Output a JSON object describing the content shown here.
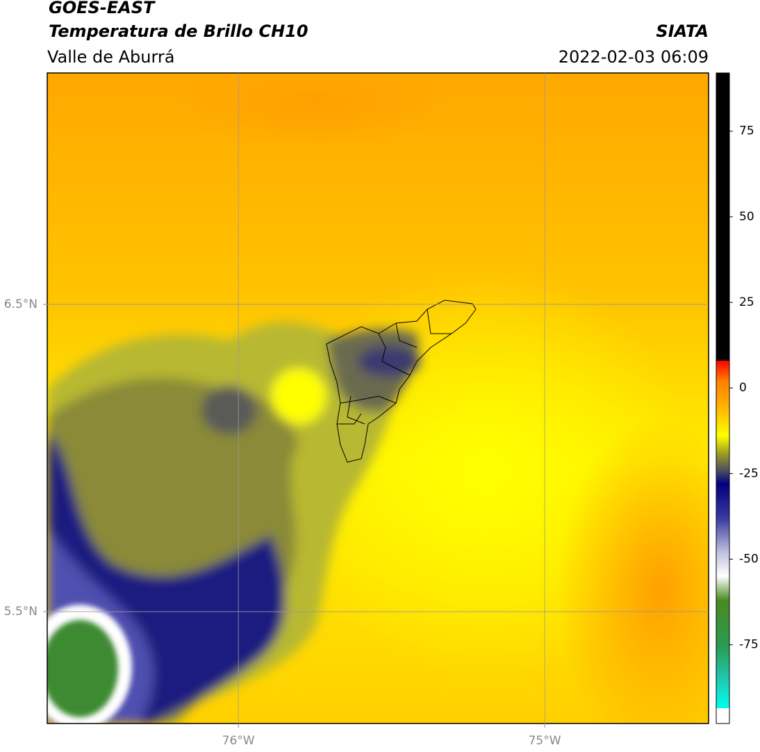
{
  "header": {
    "title": "GOES-EAST",
    "subtitle": "Temperatura de Brillo CH10",
    "region": "Valle de Aburrá",
    "source": "SIATA",
    "datetime": "2022-02-03 06:09"
  },
  "map": {
    "xlim": [
      -76.624,
      -74.465
    ],
    "ylim": [
      5.136,
      7.253
    ],
    "xticks": [
      {
        "value": -76,
        "label": "76°W"
      },
      {
        "value": -75,
        "label": "75°W"
      }
    ],
    "yticks": [
      {
        "value": 6.5,
        "label": "6.5°N"
      },
      {
        "value": 5.5,
        "label": "5.5°N"
      }
    ],
    "grid": true
  },
  "colorbar": {
    "lim": [
      -98,
      92
    ],
    "ticks": [
      75,
      50,
      25,
      0,
      -25,
      -50,
      -75
    ],
    "stops": [
      {
        "value": -98,
        "color": "#ffffff"
      },
      {
        "value": -93.5,
        "color": "#ffffff"
      },
      {
        "value": -93.5,
        "color": "#00ffee"
      },
      {
        "value": -85,
        "color": "#20c8b0"
      },
      {
        "value": -75,
        "color": "#2a9a50"
      },
      {
        "value": -62,
        "color": "#4a8a20"
      },
      {
        "value": -55,
        "color": "#ffffff"
      },
      {
        "value": -48,
        "color": "#c0c0e0"
      },
      {
        "value": -38,
        "color": "#3a3aa0"
      },
      {
        "value": -28,
        "color": "#000080"
      },
      {
        "value": -24,
        "color": "#505060"
      },
      {
        "value": -19,
        "color": "#a0a020"
      },
      {
        "value": -14,
        "color": "#ffff00"
      },
      {
        "value": -5,
        "color": "#ffb000"
      },
      {
        "value": 2,
        "color": "#ff8000"
      },
      {
        "value": 8,
        "color": "#ff0000"
      },
      {
        "value": 8,
        "color": "#000000"
      },
      {
        "value": 92,
        "color": "#000000"
      }
    ]
  }
}
